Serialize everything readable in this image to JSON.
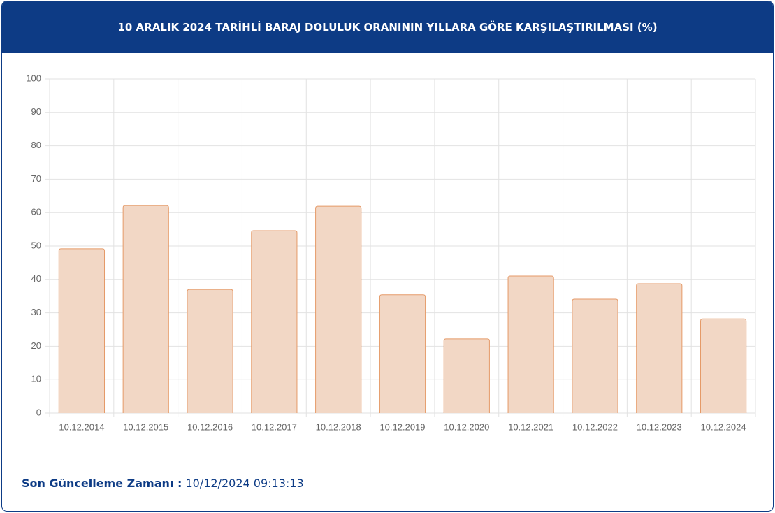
{
  "chart_data": {
    "type": "bar",
    "title": "10 ARALIK 2024 TARİHLİ BARAJ DOLULUK ORANININ YILLARA GÖRE KARŞILAŞTIRILMASI (%)",
    "categories": [
      "10.12.2014",
      "10.12.2015",
      "10.12.2016",
      "10.12.2017",
      "10.12.2018",
      "10.12.2019",
      "10.12.2020",
      "10.12.2021",
      "10.12.2022",
      "10.12.2023",
      "10.12.2024"
    ],
    "values": [
      49.2,
      62.1,
      37.0,
      54.6,
      61.9,
      35.4,
      22.2,
      41.0,
      34.1,
      38.7,
      28.2
    ],
    "color": "#f2d7c5",
    "border_color": "#e59a68",
    "ylim": [
      0,
      100
    ],
    "yticks": [
      0,
      10,
      20,
      30,
      40,
      50,
      60,
      70,
      80,
      90,
      100
    ],
    "grid": true
  },
  "footer": {
    "label": "Son Güncelleme Zamanı :",
    "value": "10/12/2024 09:13:13"
  }
}
